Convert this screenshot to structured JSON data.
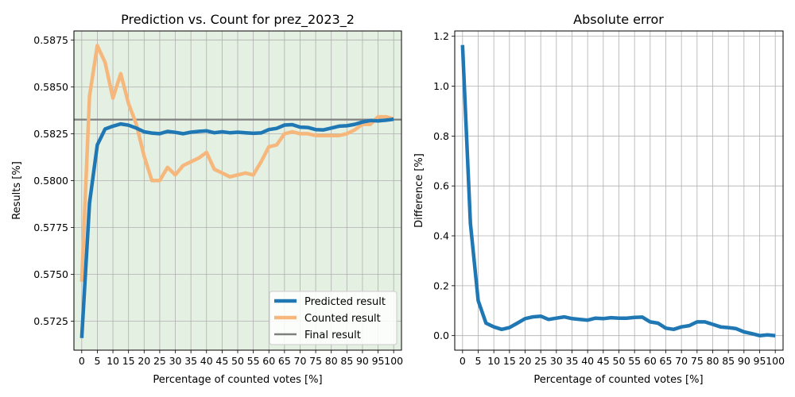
{
  "chart_data": [
    {
      "type": "line",
      "title": "Prediction vs. Count for prez_2023_2",
      "xlabel": "Percentage of counted votes [%]",
      "ylabel": "Results [%]",
      "xlim": [
        -2.5,
        102.5
      ],
      "ylim": [
        0.57095,
        0.58798
      ],
      "xticks": [
        0,
        5,
        10,
        15,
        20,
        25,
        30,
        35,
        40,
        45,
        50,
        55,
        60,
        65,
        70,
        75,
        80,
        85,
        90,
        95,
        100
      ],
      "yticks": [
        0.5725,
        0.575,
        0.5775,
        0.58,
        0.5825,
        0.585,
        0.5875
      ],
      "ytick_labels": [
        "0.5725",
        "0.5750",
        "0.5775",
        "0.5800",
        "0.5825",
        "0.5850",
        "0.5875"
      ],
      "grid": true,
      "shaded_band": {
        "ymin": 0.57095,
        "ymax": 0.58798,
        "color": "#e4f0e1"
      },
      "final_result": 0.58325,
      "legend": {
        "placement": "lower-right",
        "entries": [
          "Predicted result",
          "Counted result",
          "Final result"
        ]
      },
      "series": [
        {
          "name": "Predicted result",
          "color": "#1f77b4",
          "x": [
            0,
            2.5,
            5,
            7.5,
            10,
            12.5,
            15,
            17.5,
            20,
            22.5,
            25,
            27.5,
            30,
            32.5,
            35,
            37.5,
            40,
            42.5,
            45,
            47.5,
            50,
            52.5,
            55,
            57.5,
            60,
            62.5,
            65,
            67.5,
            70,
            72.5,
            75,
            77.5,
            80,
            82.5,
            85,
            87.5,
            90,
            92.5,
            95,
            97.5,
            100
          ],
          "values": [
            0.5716,
            0.5788,
            0.5819,
            0.58275,
            0.5829,
            0.58302,
            0.58295,
            0.5828,
            0.5826,
            0.58253,
            0.5825,
            0.58262,
            0.58257,
            0.5825,
            0.58258,
            0.58262,
            0.58265,
            0.58255,
            0.5826,
            0.58255,
            0.58258,
            0.58255,
            0.58252,
            0.58254,
            0.58272,
            0.58278,
            0.58296,
            0.58298,
            0.58285,
            0.58283,
            0.58272,
            0.5827,
            0.5828,
            0.5829,
            0.58292,
            0.583,
            0.58312,
            0.5832,
            0.58318,
            0.58322,
            0.58327
          ]
        },
        {
          "name": "Counted result",
          "color": "#f6b77d",
          "x": [
            0,
            2.5,
            5,
            7.5,
            10,
            12.5,
            15,
            17.5,
            20,
            22.5,
            25,
            27.5,
            30,
            32.5,
            35,
            37.5,
            40,
            42.5,
            45,
            47.5,
            50,
            52.5,
            55,
            57.5,
            60,
            62.5,
            65,
            67.5,
            70,
            72.5,
            75,
            77.5,
            80,
            82.5,
            85,
            87.5,
            90,
            92.5,
            95,
            97.5,
            100
          ],
          "values": [
            0.5746,
            0.5845,
            0.5872,
            0.5863,
            0.5844,
            0.5857,
            0.5841,
            0.583,
            0.5813,
            0.58,
            0.58,
            0.5807,
            0.5803,
            0.5808,
            0.581,
            0.5812,
            0.5815,
            0.5806,
            0.5804,
            0.5802,
            0.5803,
            0.5804,
            0.5803,
            0.581,
            0.5818,
            0.5819,
            0.5825,
            0.5826,
            0.5825,
            0.5825,
            0.5824,
            0.5824,
            0.5824,
            0.5824,
            0.5825,
            0.5827,
            0.583,
            0.583,
            0.5834,
            0.5834,
            0.5833
          ]
        }
      ]
    },
    {
      "type": "line",
      "title": "Absolute error",
      "xlabel": "Percentage of counted votes [%]",
      "ylabel": "Difference [%]",
      "xlim": [
        -2.5,
        102.5
      ],
      "ylim": [
        -0.0583,
        1.2212
      ],
      "xticks": [
        0,
        5,
        10,
        15,
        20,
        25,
        30,
        35,
        40,
        45,
        50,
        55,
        60,
        65,
        70,
        75,
        80,
        85,
        90,
        95,
        100
      ],
      "yticks": [
        0.0,
        0.2,
        0.4,
        0.6,
        0.8,
        1.0,
        1.2
      ],
      "ytick_labels": [
        "0.0",
        "0.2",
        "0.4",
        "0.6",
        "0.8",
        "1.0",
        "1.2"
      ],
      "grid": true,
      "series": [
        {
          "color": "#1f77b4",
          "x": [
            0,
            2.5,
            5,
            7.5,
            10,
            12.5,
            15,
            17.5,
            20,
            22.5,
            25,
            27.5,
            30,
            32.5,
            35,
            37.5,
            40,
            42.5,
            45,
            47.5,
            50,
            52.5,
            55,
            57.5,
            60,
            62.5,
            65,
            67.5,
            70,
            72.5,
            75,
            77.5,
            80,
            82.5,
            85,
            87.5,
            90,
            92.5,
            95,
            97.5,
            100
          ],
          "values": [
            1.165,
            0.45,
            0.14,
            0.05,
            0.035,
            0.025,
            0.032,
            0.05,
            0.068,
            0.075,
            0.078,
            0.065,
            0.07,
            0.075,
            0.068,
            0.065,
            0.062,
            0.07,
            0.068,
            0.072,
            0.07,
            0.07,
            0.073,
            0.074,
            0.055,
            0.05,
            0.03,
            0.025,
            0.035,
            0.04,
            0.055,
            0.055,
            0.045,
            0.035,
            0.032,
            0.028,
            0.015,
            0.008,
            0.0,
            0.003,
            0.0
          ]
        }
      ]
    }
  ]
}
